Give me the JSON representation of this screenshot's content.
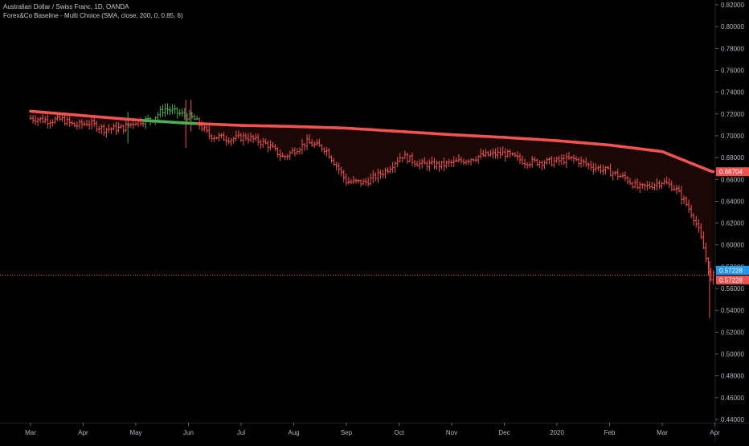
{
  "legend": {
    "symbol_line": "Australian Dollar / Swiss Franc, 1D, OANDA",
    "indicator_line": "Forex&Co Baseline - Multi Choice (SMA, close, 200, 0, 0.85, 6)"
  },
  "colors": {
    "background": "#000000",
    "bar_below_baseline": "#ef5350",
    "bar_above_baseline": "#4caf50",
    "baseline_below": "#f05452",
    "baseline_above": "#4caf50",
    "fill_below": "#1c0707",
    "axis_text": "#b2b5be",
    "current_price_tag": "#2196f3",
    "indicator_tag": "#ef5350",
    "dotted_price_line": "#ef5350"
  },
  "chart_data": {
    "type": "ohlc_with_baseline",
    "symbol": "Australian Dollar / Swiss Franc",
    "interval": "1D",
    "source": "OANDA",
    "indicator": "Forex&Co Baseline - Multi Choice (SMA, close, 200, 0, 0.85, 6)",
    "ylim": [
      0.44,
      0.82
    ],
    "y_ticks": [
      "0.82000",
      "0.80000",
      "0.78000",
      "0.76000",
      "0.74000",
      "0.72000",
      "0.70000",
      "0.68000",
      "0.66000",
      "0.64000",
      "0.62000",
      "0.60000",
      "0.58000",
      "0.56000",
      "0.54000",
      "0.52000",
      "0.50000",
      "0.48000",
      "0.46000",
      "0.44000"
    ],
    "x_ticks": [
      "Mar",
      "Apr",
      "May",
      "Jun",
      "Jul",
      "Aug",
      "Sep",
      "Oct",
      "Nov",
      "Dec",
      "2020",
      "Feb",
      "Mar",
      "Apr"
    ],
    "x_range_months": [
      0,
      14
    ],
    "price_labels": [
      {
        "label": "0.66704",
        "kind": "indicator",
        "value": 0.66704
      },
      {
        "label": "0.57228",
        "kind": "current",
        "value": 0.57228
      },
      {
        "label": "0.57228",
        "kind": "close",
        "value": 0.57228
      }
    ],
    "baseline_sma": [
      {
        "t": 0.0,
        "y": 0.7225
      },
      {
        "t": 1.0,
        "y": 0.7185
      },
      {
        "t": 2.0,
        "y": 0.7145
      },
      {
        "t": 3.0,
        "y": 0.7115
      },
      {
        "t": 4.0,
        "y": 0.7095
      },
      {
        "t": 5.0,
        "y": 0.7085
      },
      {
        "t": 6.0,
        "y": 0.707
      },
      {
        "t": 7.0,
        "y": 0.704
      },
      {
        "t": 8.0,
        "y": 0.701
      },
      {
        "t": 9.0,
        "y": 0.6985
      },
      {
        "t": 10.0,
        "y": 0.6955
      },
      {
        "t": 11.0,
        "y": 0.6915
      },
      {
        "t": 12.0,
        "y": 0.6855
      },
      {
        "t": 12.95,
        "y": 0.6671
      }
    ],
    "close_path": [
      {
        "t": 0.0,
        "y": 0.716
      },
      {
        "t": 0.35,
        "y": 0.714
      },
      {
        "t": 0.6,
        "y": 0.715
      },
      {
        "t": 0.85,
        "y": 0.709
      },
      {
        "t": 1.1,
        "y": 0.712
      },
      {
        "t": 1.4,
        "y": 0.706
      },
      {
        "t": 1.75,
        "y": 0.707
      },
      {
        "t": 2.0,
        "y": 0.713
      },
      {
        "t": 2.3,
        "y": 0.715
      },
      {
        "t": 2.55,
        "y": 0.725
      },
      {
        "t": 2.85,
        "y": 0.72
      },
      {
        "t": 3.1,
        "y": 0.716
      },
      {
        "t": 3.4,
        "y": 0.7
      },
      {
        "t": 3.8,
        "y": 0.697
      },
      {
        "t": 4.1,
        "y": 0.699
      },
      {
        "t": 4.5,
        "y": 0.692
      },
      {
        "t": 4.8,
        "y": 0.68
      },
      {
        "t": 5.25,
        "y": 0.694
      },
      {
        "t": 5.6,
        "y": 0.688
      },
      {
        "t": 5.85,
        "y": 0.67
      },
      {
        "t": 6.0,
        "y": 0.658
      },
      {
        "t": 6.35,
        "y": 0.657
      },
      {
        "t": 6.75,
        "y": 0.668
      },
      {
        "t": 7.05,
        "y": 0.682
      },
      {
        "t": 7.4,
        "y": 0.674
      },
      {
        "t": 7.8,
        "y": 0.673
      },
      {
        "t": 8.2,
        "y": 0.677
      },
      {
        "t": 8.6,
        "y": 0.682
      },
      {
        "t": 9.0,
        "y": 0.684
      },
      {
        "t": 9.4,
        "y": 0.676
      },
      {
        "t": 9.9,
        "y": 0.676
      },
      {
        "t": 10.3,
        "y": 0.679
      },
      {
        "t": 10.6,
        "y": 0.673
      },
      {
        "t": 10.95,
        "y": 0.668
      },
      {
        "t": 11.3,
        "y": 0.661
      },
      {
        "t": 11.55,
        "y": 0.652
      },
      {
        "t": 11.75,
        "y": 0.654
      },
      {
        "t": 12.0,
        "y": 0.658
      },
      {
        "t": 12.25,
        "y": 0.652
      },
      {
        "t": 12.45,
        "y": 0.638
      },
      {
        "t": 12.6,
        "y": 0.625
      },
      {
        "t": 12.7,
        "y": 0.612
      },
      {
        "t": 12.78,
        "y": 0.598
      },
      {
        "t": 12.86,
        "y": 0.582
      },
      {
        "t": 12.93,
        "y": 0.565
      },
      {
        "t": 12.97,
        "y": 0.572
      }
    ]
  }
}
